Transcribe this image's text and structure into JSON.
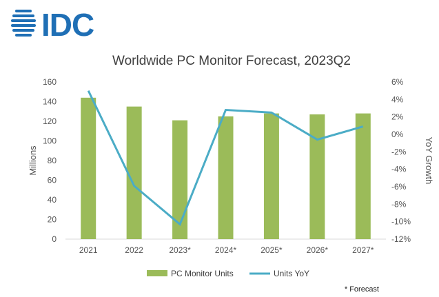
{
  "logo": {
    "text": "IDC",
    "color": "#1f6fb5"
  },
  "chart_data": {
    "type": "bar+line",
    "title": "Worldwide PC Monitor Forecast, 2023Q2",
    "categories": [
      "2021",
      "2022",
      "2023*",
      "2024*",
      "2025*",
      "2026*",
      "2027*"
    ],
    "series": [
      {
        "name": "PC Monitor Units",
        "type": "bar",
        "axis": "left",
        "color": "#9bbb59",
        "values": [
          144,
          135,
          121,
          125,
          128,
          127,
          128
        ]
      },
      {
        "name": "Units YoY",
        "type": "line",
        "axis": "right",
        "color": "#4bacc6",
        "values": [
          5.0,
          -5.9,
          -10.3,
          2.8,
          2.5,
          -0.6,
          0.9
        ]
      }
    ],
    "ylabel": "Millions",
    "y2label": "YoY Growth",
    "ylim": [
      0,
      160
    ],
    "y2lim": [
      -12,
      6
    ],
    "yticks": [
      "0",
      "20",
      "40",
      "60",
      "80",
      "100",
      "120",
      "140",
      "160"
    ],
    "y2ticks": [
      "-12%",
      "-10%",
      "-8%",
      "-6%",
      "-4%",
      "-2%",
      "0%",
      "2%",
      "4%",
      "6%"
    ],
    "grid": false,
    "legend_position": "bottom",
    "footnote": "* Forecast"
  }
}
